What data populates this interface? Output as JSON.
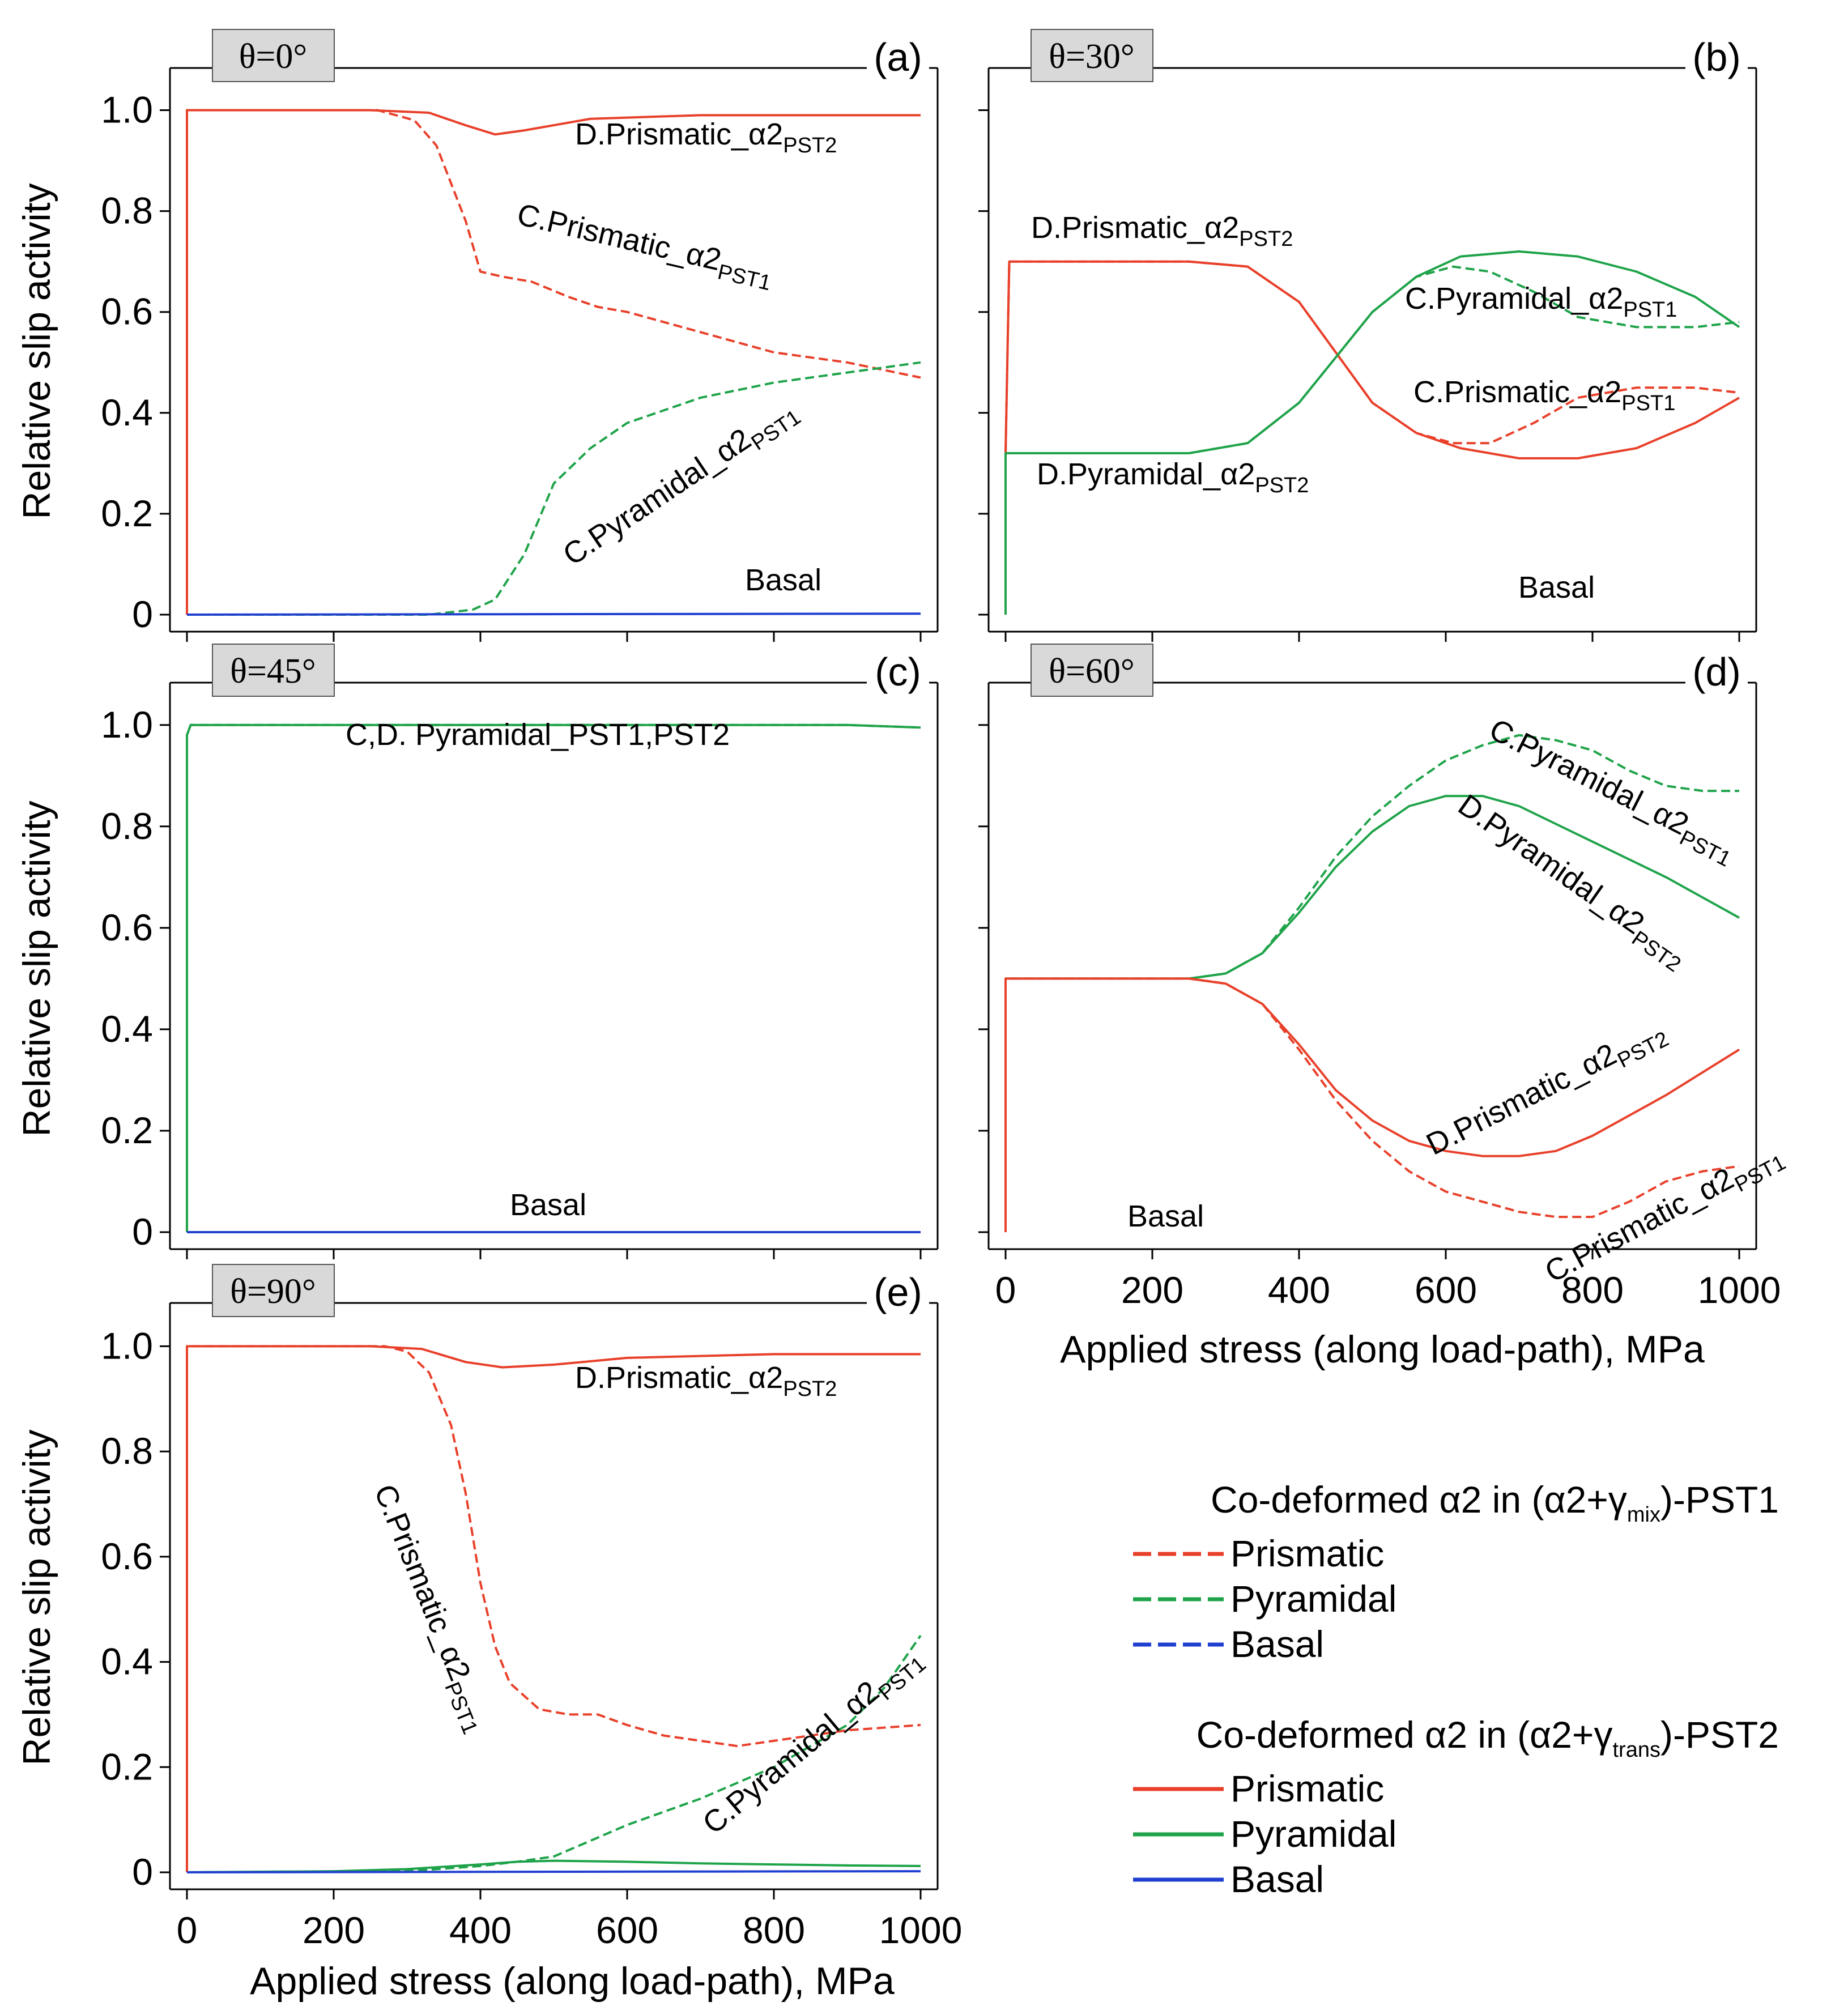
{
  "chart_data": [
    {
      "type": "line",
      "panel_label": "(a)",
      "theta_label": "θ=0°",
      "ylabel": "Relative slip activity",
      "xlabel": "",
      "xlim": [
        0,
        1000
      ],
      "ylim": [
        0,
        1.05
      ],
      "x_ticks": [],
      "y_ticks": [
        "0",
        "0.2",
        "0.4",
        "0.6",
        "0.8",
        "1.0"
      ],
      "series": [
        {
          "style": "solid",
          "color": "#e8402a",
          "x": [
            0,
            0,
            250,
            330,
            380,
            420,
            460,
            550,
            700,
            850,
            1000
          ],
          "y": [
            0,
            1.0,
            1.0,
            0.995,
            0.97,
            0.952,
            0.96,
            0.983,
            0.99,
            0.99,
            0.99
          ]
        },
        {
          "style": "dashed",
          "color": "#e8402a",
          "x": [
            0,
            0,
            260,
            310,
            340,
            380,
            400,
            430,
            470,
            520,
            560,
            600,
            700,
            800,
            900,
            1000
          ],
          "y": [
            0,
            1.0,
            1.0,
            0.98,
            0.93,
            0.78,
            0.68,
            0.67,
            0.66,
            0.63,
            0.61,
            0.6,
            0.56,
            0.52,
            0.5,
            0.47
          ]
        },
        {
          "style": "dashed",
          "color": "#1fa34a",
          "x": [
            0,
            330,
            390,
            420,
            460,
            500,
            550,
            600,
            700,
            800,
            900,
            1000
          ],
          "y": [
            0,
            0,
            0.01,
            0.03,
            0.12,
            0.26,
            0.33,
            0.38,
            0.43,
            0.46,
            0.48,
            0.5
          ]
        },
        {
          "style": "solid",
          "color": "#1f3fd0",
          "x": [
            0,
            1000
          ],
          "y": [
            0,
            0.002
          ]
        }
      ],
      "annotations": [
        {
          "text": "D.Prismatic_α2",
          "sub": "PST2"
        },
        {
          "text": "C.Prismatic_α2",
          "sub": "PST1"
        },
        {
          "text": "C.Pyramidal_α2",
          "sub": "PST1"
        },
        {
          "text": "Basal",
          "sub": ""
        }
      ]
    },
    {
      "type": "line",
      "panel_label": "(b)",
      "theta_label": "θ=30°",
      "ylabel": "",
      "xlabel": "",
      "xlim": [
        0,
        1000
      ],
      "ylim": [
        0,
        1.05
      ],
      "x_ticks": [],
      "y_ticks": [],
      "series": [
        {
          "style": "solid",
          "color": "#e8402a",
          "x": [
            0,
            0,
            5,
            250,
            330,
            400,
            450,
            500,
            560,
            620,
            700,
            780,
            860,
            940,
            1000
          ],
          "y": [
            0,
            0.32,
            0.7,
            0.7,
            0.69,
            0.62,
            0.52,
            0.42,
            0.36,
            0.33,
            0.31,
            0.31,
            0.33,
            0.38,
            0.43
          ]
        },
        {
          "style": "dashed",
          "color": "#e8402a",
          "x": [
            0,
            0,
            5,
            250,
            330,
            400,
            450,
            500,
            560,
            610,
            660,
            720,
            780,
            860,
            940,
            1000
          ],
          "y": [
            0,
            0.32,
            0.7,
            0.7,
            0.69,
            0.62,
            0.52,
            0.42,
            0.36,
            0.34,
            0.34,
            0.38,
            0.43,
            0.45,
            0.45,
            0.44
          ]
        },
        {
          "style": "solid",
          "color": "#1fa34a",
          "x": [
            0,
            0,
            250,
            330,
            400,
            450,
            500,
            560,
            620,
            700,
            780,
            860,
            940,
            1000
          ],
          "y": [
            0,
            0.32,
            0.32,
            0.34,
            0.42,
            0.51,
            0.6,
            0.67,
            0.71,
            0.72,
            0.71,
            0.68,
            0.63,
            0.57
          ]
        },
        {
          "style": "dashed",
          "color": "#1fa34a",
          "x": [
            0,
            0,
            250,
            330,
            400,
            450,
            500,
            560,
            610,
            660,
            720,
            780,
            860,
            940,
            1000
          ],
          "y": [
            0,
            0.32,
            0.32,
            0.34,
            0.42,
            0.51,
            0.6,
            0.67,
            0.69,
            0.68,
            0.64,
            0.59,
            0.57,
            0.57,
            0.58
          ]
        }
      ],
      "annotations": [
        {
          "text": "D.Prismatic_α2",
          "sub": "PST2"
        },
        {
          "text": "C.Pyramidal_α2",
          "sub": "PST1"
        },
        {
          "text": "C.Prismatic_α2",
          "sub": "PST1"
        },
        {
          "text": "D.Pyramidal_α2",
          "sub": "PST2"
        },
        {
          "text": "Basal",
          "sub": ""
        }
      ]
    },
    {
      "type": "line",
      "panel_label": "(c)",
      "theta_label": "θ=45°",
      "ylabel": "Relative slip activity",
      "xlabel": "",
      "xlim": [
        0,
        1000
      ],
      "ylim": [
        0,
        1.05
      ],
      "x_ticks": [],
      "y_ticks": [
        "0",
        "0.2",
        "0.4",
        "0.6",
        "0.8",
        "1.0"
      ],
      "series": [
        {
          "style": "solid",
          "color": "#1fa34a",
          "x": [
            0,
            0,
            5,
            900,
            1000
          ],
          "y": [
            0,
            0.98,
            1.0,
            1.0,
            0.995
          ]
        },
        {
          "style": "dashed",
          "color": "#1fa34a",
          "x": [
            0,
            0,
            5,
            900,
            1000
          ],
          "y": [
            0,
            0.98,
            1.0,
            1.0,
            0.995
          ]
        },
        {
          "style": "solid",
          "color": "#1f3fd0",
          "x": [
            0,
            1000
          ],
          "y": [
            0,
            0
          ]
        }
      ],
      "annotations": [
        {
          "text": "C,D. Pyramidal_PST1,PST2",
          "sub": ""
        },
        {
          "text": "Basal",
          "sub": ""
        }
      ]
    },
    {
      "type": "line",
      "panel_label": "(d)",
      "theta_label": "θ=60°",
      "ylabel": "",
      "xlabel": "Applied stress (along load-path), MPa",
      "xlim": [
        0,
        1000
      ],
      "ylim": [
        0,
        1.05
      ],
      "x_ticks": [
        "0",
        "200",
        "400",
        "600",
        "800",
        "1000"
      ],
      "y_ticks": [],
      "series": [
        {
          "style": "solid",
          "color": "#1fa34a",
          "x": [
            0,
            0,
            250,
            300,
            350,
            400,
            450,
            500,
            550,
            600,
            650,
            700,
            800,
            900,
            1000
          ],
          "y": [
            0,
            0.5,
            0.5,
            0.51,
            0.55,
            0.63,
            0.72,
            0.79,
            0.84,
            0.86,
            0.86,
            0.84,
            0.77,
            0.7,
            0.62
          ]
        },
        {
          "style": "dashed",
          "color": "#1fa34a",
          "x": [
            0,
            0,
            250,
            300,
            350,
            400,
            450,
            500,
            550,
            600,
            650,
            700,
            750,
            800,
            850,
            900,
            950,
            1000
          ],
          "y": [
            0,
            0.5,
            0.5,
            0.51,
            0.55,
            0.64,
            0.74,
            0.82,
            0.88,
            0.93,
            0.96,
            0.98,
            0.97,
            0.95,
            0.91,
            0.88,
            0.87,
            0.87
          ]
        },
        {
          "style": "solid",
          "color": "#e8402a",
          "x": [
            0,
            0,
            250,
            300,
            350,
            400,
            450,
            500,
            550,
            600,
            650,
            700,
            750,
            800,
            900,
            1000
          ],
          "y": [
            0,
            0.5,
            0.5,
            0.49,
            0.45,
            0.37,
            0.28,
            0.22,
            0.18,
            0.16,
            0.15,
            0.15,
            0.16,
            0.19,
            0.27,
            0.36
          ]
        },
        {
          "style": "dashed",
          "color": "#e8402a",
          "x": [
            0,
            0,
            250,
            300,
            350,
            400,
            450,
            500,
            550,
            600,
            650,
            700,
            750,
            800,
            850,
            900,
            950,
            1000
          ],
          "y": [
            0,
            0.5,
            0.5,
            0.49,
            0.45,
            0.36,
            0.26,
            0.18,
            0.12,
            0.08,
            0.06,
            0.04,
            0.03,
            0.03,
            0.06,
            0.1,
            0.12,
            0.13
          ]
        }
      ],
      "annotations": [
        {
          "text": "C.Pyramidal_α2",
          "sub": "PST1"
        },
        {
          "text": "D.Pyramidal_α2",
          "sub": "PST2"
        },
        {
          "text": "D.Prismatic_α2",
          "sub": "PST2"
        },
        {
          "text": "C.Prismatic_α2",
          "sub": "PST1"
        },
        {
          "text": "Basal",
          "sub": ""
        }
      ]
    },
    {
      "type": "line",
      "panel_label": "(e)",
      "theta_label": "θ=90°",
      "ylabel": "Relative slip activity",
      "xlabel": "Applied stress (along load-path), MPa",
      "xlim": [
        0,
        1000
      ],
      "ylim": [
        0,
        1.05
      ],
      "x_ticks": [
        "0",
        "200",
        "400",
        "600",
        "800",
        "1000"
      ],
      "y_ticks": [
        "0",
        "0.2",
        "0.4",
        "0.6",
        "0.8",
        "1.0"
      ],
      "series": [
        {
          "style": "solid",
          "color": "#e8402a",
          "x": [
            0,
            0,
            250,
            320,
            380,
            430,
            500,
            600,
            800,
            1000
          ],
          "y": [
            0,
            1.0,
            1.0,
            0.995,
            0.97,
            0.96,
            0.965,
            0.978,
            0.985,
            0.985
          ]
        },
        {
          "style": "dashed",
          "color": "#e8402a",
          "x": [
            0,
            0,
            270,
            300,
            330,
            360,
            380,
            400,
            420,
            440,
            480,
            520,
            560,
            600,
            650,
            700,
            750,
            800,
            900,
            1000
          ],
          "y": [
            0,
            1.0,
            1.0,
            0.99,
            0.95,
            0.85,
            0.72,
            0.55,
            0.43,
            0.36,
            0.31,
            0.3,
            0.3,
            0.28,
            0.26,
            0.25,
            0.24,
            0.25,
            0.27,
            0.28
          ]
        },
        {
          "style": "dashed",
          "color": "#1fa34a",
          "x": [
            0,
            300,
            400,
            450,
            500,
            550,
            600,
            700,
            800,
            900,
            950,
            1000
          ],
          "y": [
            0,
            0.002,
            0.012,
            0.02,
            0.03,
            0.06,
            0.09,
            0.14,
            0.2,
            0.28,
            0.35,
            0.45
          ]
        },
        {
          "style": "solid",
          "color": "#1fa34a",
          "x": [
            0,
            200,
            300,
            400,
            450,
            500,
            600,
            700,
            800,
            900,
            1000
          ],
          "y": [
            0,
            0.002,
            0.006,
            0.015,
            0.02,
            0.022,
            0.02,
            0.017,
            0.015,
            0.013,
            0.012
          ]
        },
        {
          "style": "solid",
          "color": "#1f3fd0",
          "x": [
            0,
            1000
          ],
          "y": [
            0,
            0.002
          ]
        }
      ],
      "annotations": [
        {
          "text": "D.Prismatic_α2",
          "sub": "PST2"
        },
        {
          "text": "C.Prismatic_α2",
          "sub": "PST1"
        },
        {
          "text": "C.Pyramidal_α2",
          "sub": "PST1"
        }
      ]
    }
  ],
  "legend": {
    "groups": [
      {
        "title": "Co-deformed α2 in (α2+γ",
        "title_sub": "mix",
        "title_tail": ")-PST1",
        "style": "dashed",
        "items": [
          {
            "label": "Prismatic",
            "color": "#e8402a"
          },
          {
            "label": "Pyramidal",
            "color": "#1fa34a"
          },
          {
            "label": "Basal",
            "color": "#1f3fd0"
          }
        ]
      },
      {
        "title": "Co-deformed α2 in (α2+γ",
        "title_sub": "trans",
        "title_tail": ")-PST2",
        "style": "solid",
        "items": [
          {
            "label": "Prismatic",
            "color": "#e8402a"
          },
          {
            "label": "Pyramidal",
            "color": "#1fa34a"
          },
          {
            "label": "Basal",
            "color": "#1f3fd0"
          }
        ]
      }
    ]
  }
}
